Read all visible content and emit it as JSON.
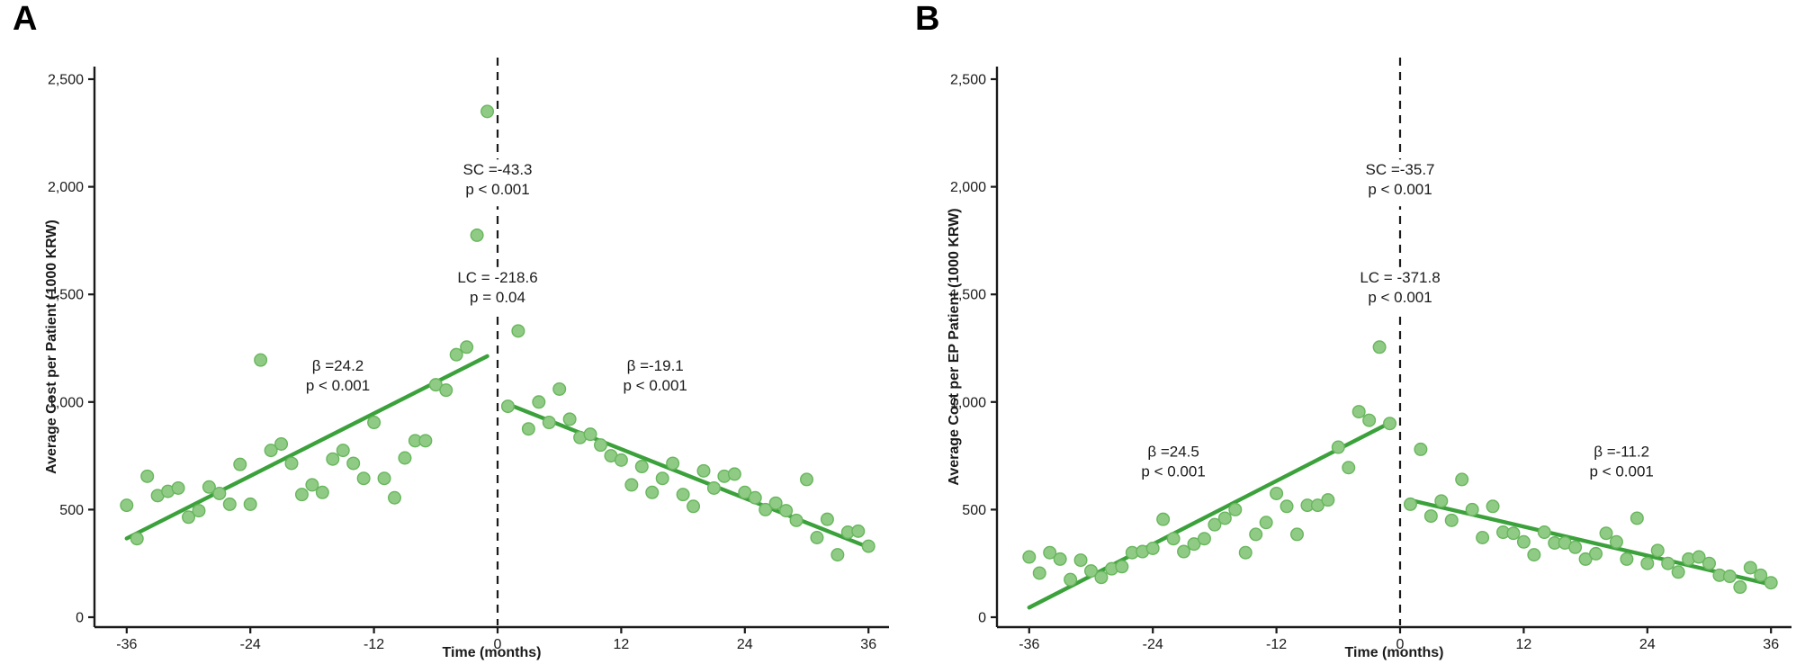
{
  "figure": {
    "background": "#ffffff"
  },
  "chart_data": [
    {
      "type": "scatter",
      "panel_label": "A",
      "ylabel": "Average Cost per Patient (1000 KRW)",
      "xlabel": "Time (months)",
      "ylim": [
        0,
        2500
      ],
      "xlim": [
        -38,
        38
      ],
      "grid": false,
      "legend": "none",
      "intervention_month": 0,
      "y_ticks": [
        {
          "value": 0,
          "label": "0"
        },
        {
          "value": 500,
          "label": "500"
        },
        {
          "value": 1000,
          "label": "1,000"
        },
        {
          "value": 1500,
          "label": "1,500"
        },
        {
          "value": 2000,
          "label": "2,000"
        },
        {
          "value": 2500,
          "label": "2,500"
        }
      ],
      "x_ticks": [
        {
          "value": -36,
          "label": "-36"
        },
        {
          "value": -24,
          "label": "-24"
        },
        {
          "value": -12,
          "label": "-12"
        },
        {
          "value": 0,
          "label": "0"
        },
        {
          "value": 12,
          "label": "12"
        },
        {
          "value": 24,
          "label": "24"
        },
        {
          "value": 36,
          "label": "36"
        }
      ],
      "colors": {
        "point_fill": "#90cb85",
        "point_stroke": "#68b65d",
        "line": "#3ba13b",
        "dash": "#1a1a1a",
        "axis": "#1a1a1a",
        "text": "#1a1a1a"
      },
      "annotations": [
        {
          "lines": [
            "SC =-43.3",
            "p < 0.001"
          ],
          "month": 0,
          "value": 2060
        },
        {
          "lines": [
            "LC = -218.6",
            "p = 0.04"
          ],
          "month": 0,
          "value": 1560
        },
        {
          "lines": [
            "β =24.2",
            "p < 0.001"
          ],
          "month": -15.5,
          "value": 1150
        },
        {
          "lines": [
            "β =-19.1",
            "p < 0.001"
          ],
          "month": 15.3,
          "value": 1150
        }
      ],
      "segments": [
        {
          "name": "pre-intervention",
          "trend": {
            "x1": -36,
            "y1": 366,
            "x2": -1,
            "y2": 1213
          },
          "points": [
            [
              -36,
              520
            ],
            [
              -35,
              365
            ],
            [
              -34,
              655
            ],
            [
              -33,
              565
            ],
            [
              -32,
              585
            ],
            [
              -31,
              600
            ],
            [
              -30,
              465
            ],
            [
              -29,
              495
            ],
            [
              -28,
              605
            ],
            [
              -27,
              575
            ],
            [
              -26,
              525
            ],
            [
              -25,
              710
            ],
            [
              -24,
              525
            ],
            [
              -23,
              1195
            ],
            [
              -22,
              775
            ],
            [
              -21,
              805
            ],
            [
              -20,
              715
            ],
            [
              -19,
              570
            ],
            [
              -18,
              615
            ],
            [
              -17,
              580
            ],
            [
              -16,
              735
            ],
            [
              -15,
              775
            ],
            [
              -14,
              715
            ],
            [
              -13,
              645
            ],
            [
              -12,
              905
            ],
            [
              -11,
              645
            ],
            [
              -10,
              555
            ],
            [
              -9,
              740
            ],
            [
              -8,
              820
            ],
            [
              -7,
              820
            ],
            [
              -6,
              1080
            ],
            [
              -5,
              1055
            ],
            [
              -4,
              1220
            ],
            [
              -3,
              1255
            ],
            [
              -2,
              1775
            ],
            [
              -1,
              2350
            ]
          ]
        },
        {
          "name": "post-intervention",
          "trend": {
            "x1": 1,
            "y1": 990,
            "x2": 36,
            "y2": 325
          },
          "points": [
            [
              1,
              980
            ],
            [
              2,
              1330
            ],
            [
              3,
              875
            ],
            [
              4,
              1000
            ],
            [
              5,
              905
            ],
            [
              6,
              1060
            ],
            [
              7,
              920
            ],
            [
              8,
              835
            ],
            [
              9,
              850
            ],
            [
              10,
              800
            ],
            [
              11,
              750
            ],
            [
              12,
              730
            ],
            [
              13,
              615
            ],
            [
              14,
              700
            ],
            [
              15,
              580
            ],
            [
              16,
              645
            ],
            [
              17,
              715
            ],
            [
              18,
              570
            ],
            [
              19,
              515
            ],
            [
              20,
              680
            ],
            [
              21,
              600
            ],
            [
              22,
              655
            ],
            [
              23,
              665
            ],
            [
              24,
              580
            ],
            [
              25,
              555
            ],
            [
              26,
              500
            ],
            [
              27,
              530
            ],
            [
              28,
              495
            ],
            [
              29,
              450
            ],
            [
              30,
              640
            ],
            [
              31,
              370
            ],
            [
              32,
              455
            ],
            [
              33,
              290
            ],
            [
              34,
              395
            ],
            [
              35,
              400
            ],
            [
              36,
              330
            ]
          ]
        }
      ]
    },
    {
      "type": "scatter",
      "panel_label": "B",
      "ylabel": "Average Cost per EP Patient (1000 KRW)",
      "xlabel": "Time (months)",
      "ylim": [
        0,
        2500
      ],
      "xlim": [
        -38,
        38
      ],
      "grid": false,
      "legend": "none",
      "intervention_month": 0,
      "y_ticks": [
        {
          "value": 0,
          "label": "0"
        },
        {
          "value": 500,
          "label": "500"
        },
        {
          "value": 1000,
          "label": "1,000"
        },
        {
          "value": 1500,
          "label": "1,500"
        },
        {
          "value": 2000,
          "label": "2,000"
        },
        {
          "value": 2500,
          "label": "2,500"
        }
      ],
      "x_ticks": [
        {
          "value": -36,
          "label": "-36"
        },
        {
          "value": -24,
          "label": "-24"
        },
        {
          "value": -12,
          "label": "-12"
        },
        {
          "value": 0,
          "label": "0"
        },
        {
          "value": 12,
          "label": "12"
        },
        {
          "value": 24,
          "label": "24"
        },
        {
          "value": 36,
          "label": "36"
        }
      ],
      "colors": {
        "point_fill": "#90cb85",
        "point_stroke": "#68b65d",
        "line": "#3ba13b",
        "dash": "#1a1a1a",
        "axis": "#1a1a1a",
        "text": "#1a1a1a"
      },
      "annotations": [
        {
          "lines": [
            "SC =-35.7",
            "p < 0.001"
          ],
          "month": 0,
          "value": 2060
        },
        {
          "lines": [
            "LC = -371.8",
            "p < 0.001"
          ],
          "month": 0,
          "value": 1560
        },
        {
          "lines": [
            "β =24.5",
            "p < 0.001"
          ],
          "month": -22,
          "value": 750
        },
        {
          "lines": [
            "β =-11.2",
            "p < 0.001"
          ],
          "month": 21.5,
          "value": 750
        }
      ],
      "segments": [
        {
          "name": "pre-intervention",
          "trend": {
            "x1": -36,
            "y1": 45,
            "x2": -1,
            "y2": 903
          },
          "points": [
            [
              -36,
              280
            ],
            [
              -35,
              205
            ],
            [
              -34,
              300
            ],
            [
              -33,
              270
            ],
            [
              -32,
              175
            ],
            [
              -31,
              265
            ],
            [
              -30,
              215
            ],
            [
              -29,
              185
            ],
            [
              -28,
              225
            ],
            [
              -27,
              235
            ],
            [
              -26,
              300
            ],
            [
              -25,
              305
            ],
            [
              -24,
              320
            ],
            [
              -23,
              455
            ],
            [
              -22,
              365
            ],
            [
              -21,
              305
            ],
            [
              -20,
              340
            ],
            [
              -19,
              365
            ],
            [
              -18,
              430
            ],
            [
              -17,
              460
            ],
            [
              -16,
              500
            ],
            [
              -15,
              300
            ],
            [
              -14,
              385
            ],
            [
              -13,
              440
            ],
            [
              -12,
              575
            ],
            [
              -11,
              515
            ],
            [
              -10,
              385
            ],
            [
              -9,
              520
            ],
            [
              -8,
              520
            ],
            [
              -7,
              545
            ],
            [
              -6,
              790
            ],
            [
              -5,
              695
            ],
            [
              -4,
              955
            ],
            [
              -3,
              915
            ],
            [
              -2,
              1255
            ],
            [
              -1,
              900
            ]
          ]
        },
        {
          "name": "post-intervention",
          "trend": {
            "x1": 1,
            "y1": 544,
            "x2": 36,
            "y2": 152
          },
          "points": [
            [
              1,
              525
            ],
            [
              2,
              780
            ],
            [
              3,
              470
            ],
            [
              4,
              540
            ],
            [
              5,
              450
            ],
            [
              6,
              640
            ],
            [
              7,
              500
            ],
            [
              8,
              370
            ],
            [
              9,
              515
            ],
            [
              10,
              395
            ],
            [
              11,
              390
            ],
            [
              12,
              350
            ],
            [
              13,
              290
            ],
            [
              14,
              395
            ],
            [
              15,
              345
            ],
            [
              16,
              345
            ],
            [
              17,
              325
            ],
            [
              18,
              270
            ],
            [
              19,
              295
            ],
            [
              20,
              390
            ],
            [
              21,
              350
            ],
            [
              22,
              270
            ],
            [
              23,
              460
            ],
            [
              24,
              250
            ],
            [
              25,
              310
            ],
            [
              26,
              250
            ],
            [
              27,
              210
            ],
            [
              28,
              270
            ],
            [
              29,
              280
            ],
            [
              30,
              250
            ],
            [
              31,
              195
            ],
            [
              32,
              190
            ],
            [
              33,
              140
            ],
            [
              34,
              230
            ],
            [
              35,
              195
            ],
            [
              36,
              160
            ]
          ]
        }
      ]
    }
  ]
}
